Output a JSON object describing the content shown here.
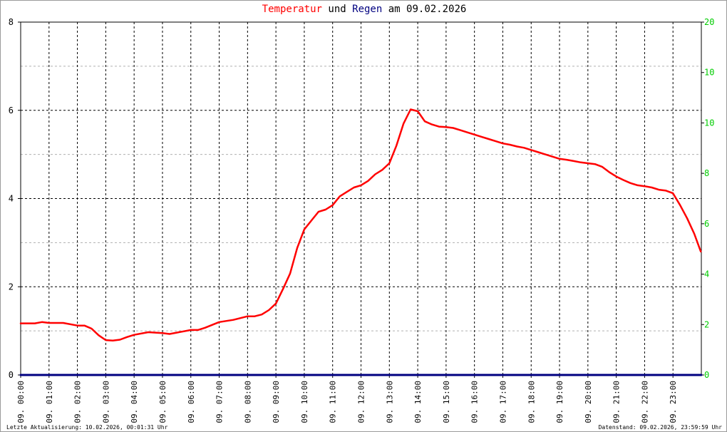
{
  "chart_data": {
    "type": "line",
    "title": {
      "part_temp": "Temperatur",
      "part_und": "und",
      "part_regen": "Regen",
      "part_am": "am",
      "part_date": "09.02.2026"
    },
    "colors": {
      "temperature": "#ff0000",
      "rain": "#000080",
      "left_axis": "#000000",
      "right_axis": "#00cc00",
      "grid_major": "#000000",
      "grid_minor": "#b0b0b0"
    },
    "x_tick_labels": [
      "09. 00:00",
      "09. 01:00",
      "09. 02:00",
      "09. 03:00",
      "09. 04:00",
      "09. 05:00",
      "09. 06:00",
      "09. 07:00",
      "09. 08:00",
      "09. 09:00",
      "09. 10:00",
      "09. 11:00",
      "09. 12:00",
      "09. 13:00",
      "09. 14:00",
      "09. 15:00",
      "09. 16:00",
      "09. 17:00",
      "09. 18:00",
      "09. 19:00",
      "09. 20:00",
      "09. 21:00",
      "09. 22:00",
      "09. 23:00"
    ],
    "x_range": [
      0,
      24
    ],
    "y_left": {
      "range": [
        0,
        8
      ],
      "ticks": [
        "0",
        "2",
        "4",
        "6",
        "8"
      ]
    },
    "y_right": {
      "range": [
        0,
        20
      ],
      "ticks": [
        "0",
        "2",
        "4",
        "6",
        "8",
        "10",
        "10",
        "20"
      ]
    },
    "grid": true,
    "series": [
      {
        "key": "temperature",
        "x_hours": [
          0,
          0.5,
          0.75,
          1,
          1.5,
          2,
          2.25,
          2.5,
          2.75,
          3,
          3.25,
          3.5,
          3.75,
          4,
          4.5,
          5,
          5.25,
          5.5,
          6,
          6.25,
          6.5,
          7,
          7.5,
          8,
          8.25,
          8.5,
          8.75,
          9,
          9.25,
          9.5,
          9.75,
          10,
          10.25,
          10.5,
          10.75,
          11,
          11.25,
          11.5,
          11.75,
          12,
          12.25,
          12.5,
          12.75,
          13,
          13.25,
          13.5,
          13.75,
          14,
          14.25,
          14.5,
          14.75,
          15,
          15.25,
          15.5,
          15.75,
          16,
          16.25,
          16.5,
          16.75,
          17,
          17.25,
          17.5,
          17.75,
          18,
          18.25,
          18.5,
          18.75,
          19,
          19.25,
          19.5,
          19.75,
          20,
          20.25,
          20.5,
          20.75,
          21,
          21.25,
          21.5,
          21.75,
          22,
          22.25,
          22.5,
          22.75,
          23,
          23.25,
          23.5,
          23.75,
          23.98
        ],
        "values": [
          1.17,
          1.17,
          1.2,
          1.18,
          1.18,
          1.12,
          1.12,
          1.05,
          0.9,
          0.79,
          0.78,
          0.8,
          0.86,
          0.91,
          0.97,
          0.95,
          0.93,
          0.96,
          1.02,
          1.02,
          1.07,
          1.2,
          1.25,
          1.33,
          1.33,
          1.37,
          1.47,
          1.62,
          1.95,
          2.3,
          2.88,
          3.3,
          3.5,
          3.7,
          3.75,
          3.85,
          4.05,
          4.15,
          4.25,
          4.3,
          4.4,
          4.55,
          4.65,
          4.8,
          5.2,
          5.7,
          6.02,
          5.98,
          5.75,
          5.68,
          5.63,
          5.62,
          5.6,
          5.55,
          5.5,
          5.45,
          5.4,
          5.35,
          5.3,
          5.25,
          5.22,
          5.18,
          5.15,
          5.1,
          5.05,
          5.0,
          4.95,
          4.9,
          4.88,
          4.85,
          4.82,
          4.8,
          4.78,
          4.72,
          4.6,
          4.5,
          4.42,
          4.35,
          4.3,
          4.28,
          4.25,
          4.2,
          4.18,
          4.12,
          3.85,
          3.55,
          3.2,
          2.8
        ]
      },
      {
        "key": "rain",
        "x_hours": [
          0,
          24
        ],
        "values": [
          0,
          0
        ]
      }
    ]
  },
  "footer": {
    "left": "Letzte Aktualisierung: 10.02.2026, 00:01:31 Uhr",
    "right": "Datenstand: 09.02.2026, 23:59:59 Uhr"
  }
}
